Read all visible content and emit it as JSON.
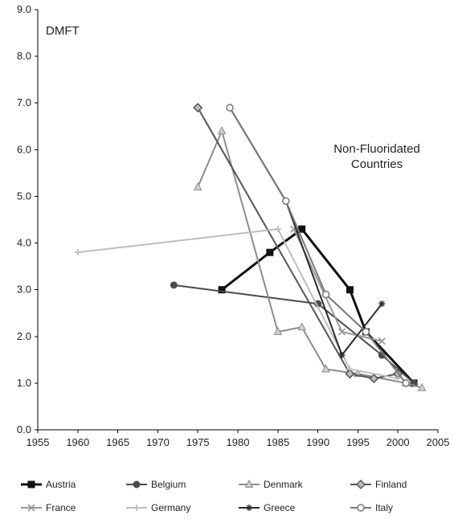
{
  "chart_data": {
    "type": "line",
    "xlim": [
      1955,
      2005
    ],
    "ylim": [
      0.0,
      9.0
    ],
    "x_ticks": [
      1955,
      1960,
      1965,
      1970,
      1975,
      1980,
      1985,
      1990,
      1995,
      2000,
      2005
    ],
    "y_ticks": [
      "0.0",
      "1.0",
      "2.0",
      "3.0",
      "4.0",
      "5.0",
      "6.0",
      "7.0",
      "8.0",
      "9.0"
    ],
    "ylabel": "DMFT",
    "xlabel": "",
    "annotation": {
      "line1": "Non-Fluoridated",
      "line2": "Countries"
    },
    "grid": false,
    "legend_position": "bottom",
    "series": [
      {
        "name": "Austria",
        "color": "#111111",
        "width": 3,
        "marker": "square",
        "points": [
          [
            1978,
            3.0
          ],
          [
            1984,
            3.8
          ],
          [
            1988,
            4.3
          ],
          [
            1994,
            3.0
          ],
          [
            1996,
            2.1
          ],
          [
            2002,
            1.0
          ]
        ]
      },
      {
        "name": "Belgium",
        "color": "#4a4a4a",
        "width": 2,
        "marker": "circle",
        "points": [
          [
            1972,
            3.1
          ],
          [
            1990,
            2.7
          ],
          [
            1998,
            1.6
          ],
          [
            2002,
            1.0
          ]
        ]
      },
      {
        "name": "Denmark",
        "color": "#8c8c8c",
        "width": 2,
        "marker": "triangle",
        "points": [
          [
            1975,
            5.2
          ],
          [
            1978,
            6.4
          ],
          [
            1985,
            2.1
          ],
          [
            1988,
            2.2
          ],
          [
            1991,
            1.3
          ],
          [
            1995,
            1.2
          ],
          [
            2001,
            1.0
          ],
          [
            2003,
            0.9
          ]
        ]
      },
      {
        "name": "Finland",
        "color": "#555555",
        "width": 2,
        "marker": "diamond",
        "points": [
          [
            1975,
            6.9
          ],
          [
            1994,
            1.2
          ],
          [
            1997,
            1.1
          ],
          [
            2000,
            1.2
          ]
        ]
      },
      {
        "name": "France",
        "color": "#9a9a9a",
        "width": 2,
        "marker": "x",
        "points": [
          [
            1987,
            4.3
          ],
          [
            1993,
            2.1
          ],
          [
            1998,
            1.9
          ]
        ]
      },
      {
        "name": "Germany",
        "color": "#bdbdbd",
        "width": 2,
        "marker": "plus",
        "points": [
          [
            1960,
            3.8
          ],
          [
            1985,
            4.3
          ],
          [
            1994,
            1.3
          ],
          [
            2000,
            1.1
          ]
        ]
      },
      {
        "name": "Greece",
        "color": "#2b2b2b",
        "width": 2,
        "marker": "star",
        "points": [
          [
            1979,
            6.9
          ],
          [
            1986,
            4.9
          ],
          [
            1993,
            1.6
          ],
          [
            1998,
            2.7
          ]
        ]
      },
      {
        "name": "Italy",
        "color": "#777777",
        "width": 2,
        "marker": "circle-open",
        "points": [
          [
            1979,
            6.9
          ],
          [
            1986,
            4.9
          ],
          [
            1991,
            2.9
          ],
          [
            1996,
            2.1
          ],
          [
            2001,
            1.0
          ]
        ]
      }
    ]
  }
}
